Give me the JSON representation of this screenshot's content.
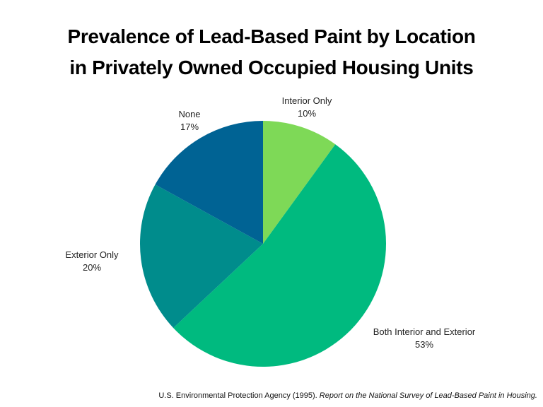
{
  "title": {
    "line1": "Prevalence of Lead-Based Paint by Location",
    "line2": "in Privately Owned Occupied Housing Units"
  },
  "chart_data": {
    "type": "pie",
    "title": "Prevalence of Lead-Based Paint by Location in Privately Owned Occupied Housing Units",
    "categories": [
      "Interior Only",
      "Both Interior and Exterior",
      "Exterior Only",
      "None"
    ],
    "values": [
      10,
      53,
      20,
      17
    ],
    "unit": "%",
    "colors": [
      "#7ed957",
      "#00ba7f",
      "#008c8c",
      "#006394"
    ],
    "start_angle": "12 o'clock",
    "direction": "clockwise",
    "legend": "none (direct labels)"
  },
  "labels": {
    "interior_only": {
      "name": "Interior Only",
      "pct": "10%"
    },
    "both": {
      "name": "Both Interior and Exterior",
      "pct": "53%"
    },
    "exterior_only": {
      "name": "Exterior Only",
      "pct": "20%"
    },
    "none": {
      "name": "None",
      "pct": "17%"
    }
  },
  "footnote": {
    "source": "U.S. Environmental Protection Agency (1995). ",
    "report": "Report on the National Survey of Lead-Based Paint in Housing."
  }
}
